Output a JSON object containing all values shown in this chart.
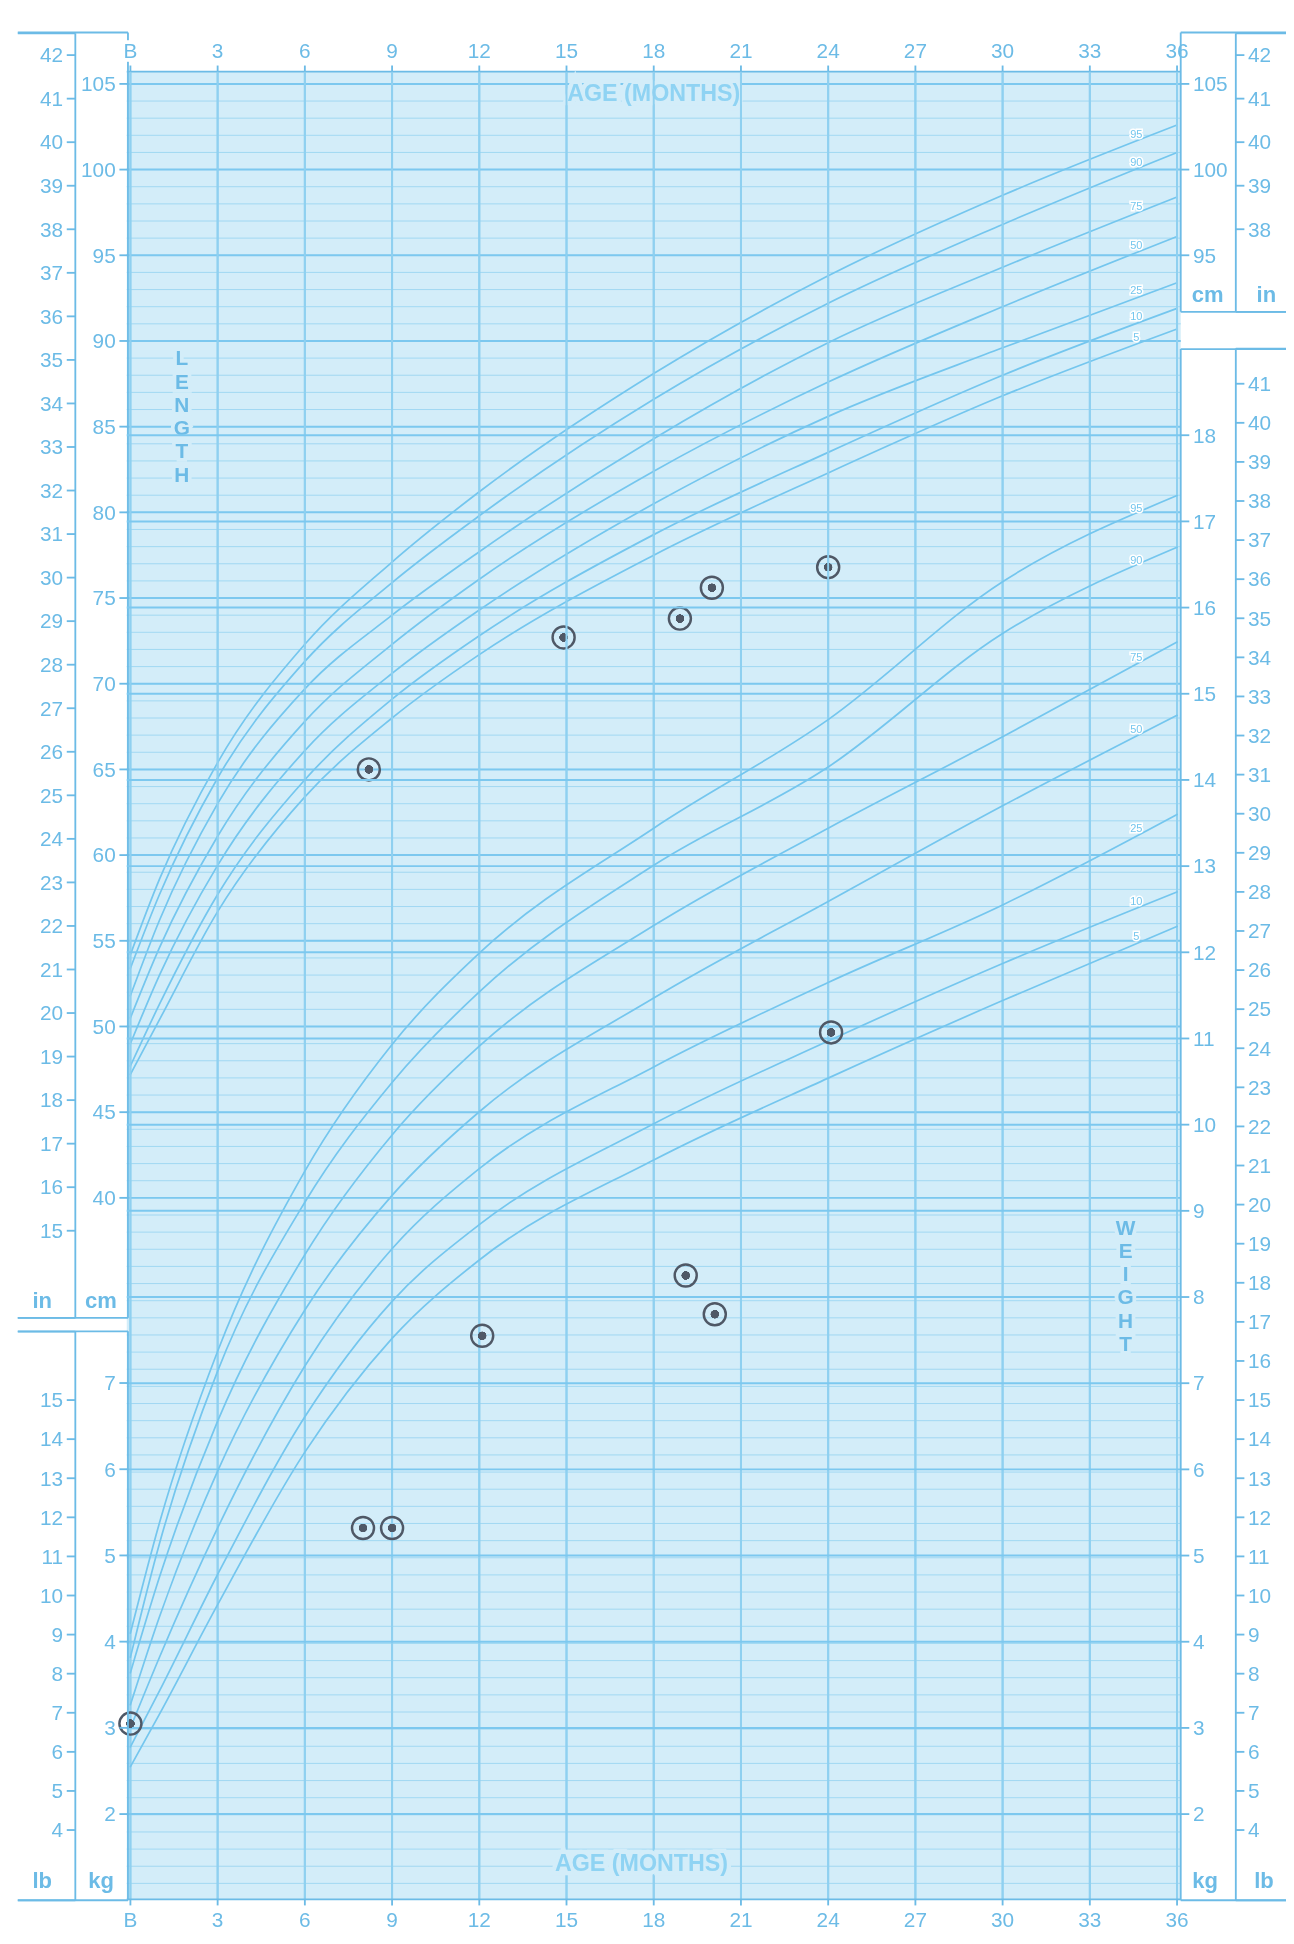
{
  "chart_data": [
    {
      "type": "line",
      "x2label": "AGE (MONTHS)",
      "xlim": [
        0,
        36
      ],
      "x2lim": [
        0,
        36
      ],
      "x2ticks": [
        {
          "value": 0,
          "label": "B"
        },
        3,
        6,
        9,
        12,
        15,
        18,
        21,
        24,
        27,
        30,
        33,
        36
      ],
      "ylabel": "cm",
      "ylim": [
        33,
        108
      ],
      "yticks": [
        40,
        45,
        50,
        55,
        60,
        65,
        70,
        75,
        80,
        85,
        90,
        95,
        100,
        105
      ],
      "y2label": "in",
      "y2lim": [
        13,
        42.5
      ],
      "y2ticks": [
        15,
        16,
        17,
        18,
        19,
        20,
        21,
        22,
        23,
        24,
        25,
        26,
        27,
        28,
        29,
        30,
        31,
        32,
        33,
        34,
        35,
        36,
        37,
        38,
        39,
        40,
        41,
        42
      ],
      "annotations": [
        "LENGTH"
      ],
      "grid": true,
      "marker": "none",
      "line_style": "solid",
      "x": [
        0,
        1,
        3,
        6,
        9,
        12,
        18,
        24,
        30,
        36
      ],
      "series": [
        {
          "name": "95",
          "color": "#74c6ee",
          "values": [
            54.2,
            58.6,
            65.4,
            72.3,
            77.1,
            81.2,
            88.1,
            93.8,
            98.5,
            102.6
          ]
        },
        {
          "name": "90",
          "color": "#74c6ee",
          "values": [
            53.4,
            57.7,
            64.5,
            71.3,
            75.9,
            79.8,
            86.6,
            92.2,
            96.8,
            101.0
          ]
        },
        {
          "name": "75",
          "color": "#74c6ee",
          "values": [
            51.8,
            56.2,
            63.0,
            69.7,
            74.0,
            77.7,
            84.3,
            89.9,
            94.3,
            98.4
          ]
        },
        {
          "name": "50",
          "color": "#74c6ee",
          "values": [
            50.5,
            54.6,
            61.1,
            67.8,
            72.3,
            76.1,
            82.4,
            87.6,
            92.0,
            96.1
          ]
        },
        {
          "name": "25",
          "color": "#74c6ee",
          "values": [
            49.0,
            53.0,
            59.4,
            66.1,
            70.6,
            74.3,
            80.5,
            85.6,
            89.6,
            93.4
          ]
        },
        {
          "name": "10",
          "color": "#74c6ee",
          "values": [
            47.7,
            51.3,
            57.7,
            64.4,
            69.1,
            72.8,
            78.7,
            83.5,
            88.0,
            91.9
          ]
        },
        {
          "name": "5",
          "color": "#74c6ee",
          "values": [
            47.2,
            50.4,
            56.7,
            63.4,
            68.0,
            71.7,
            77.5,
            82.3,
            86.8,
            90.7
          ]
        },
        {
          "type": "scatter",
          "marker": "circle",
          "color": "#4f5866",
          "x": [
            8.2,
            14.9,
            18.9,
            20.0,
            24.0
          ],
          "values": [
            65.0,
            72.7,
            73.8,
            75.6,
            76.8
          ]
        }
      ]
    },
    {
      "type": "line",
      "xlim": [
        0,
        36
      ],
      "tick_labels": "y",
      "ylabel": "cm",
      "ylim": [
        91.7,
        108
      ],
      "yticks": [
        95,
        100,
        105
      ],
      "y2label": "in",
      "y2lim": [
        36.1,
        42.5
      ],
      "y2ticks": [
        38,
        39,
        40,
        41,
        42
      ]
    },
    {
      "type": "line",
      "xlabel": "AGE (MONTHS)",
      "xlim": [
        0,
        36
      ],
      "xticks": [
        {
          "value": 0,
          "label": "B"
        },
        3,
        6,
        9,
        12,
        15,
        18,
        21,
        24,
        27,
        30,
        33,
        36
      ],
      "ylabel": "kg",
      "ylim": [
        1,
        19
      ],
      "yticks": [
        2,
        3,
        4,
        5,
        6,
        7,
        8,
        9,
        10,
        11,
        12,
        13,
        14,
        15,
        16,
        17,
        18
      ],
      "y2label": "lb",
      "y2lim": [
        2.2,
        41.9
      ],
      "y2ticks": [
        4,
        5,
        6,
        7,
        8,
        9,
        10,
        11,
        12,
        13,
        14,
        15,
        16,
        17,
        18,
        19,
        20,
        21,
        22,
        23,
        24,
        25,
        26,
        27,
        28,
        29,
        30,
        31,
        32,
        33,
        34,
        35,
        36,
        37,
        38,
        39,
        40,
        41
      ],
      "annotations": [
        "WEIGHT"
      ],
      "grid": true,
      "marker": "none",
      "line_style": "solid",
      "x": [
        0,
        1,
        3,
        6,
        9,
        12,
        18,
        24,
        30,
        36
      ],
      "series": [
        {
          "name": "95",
          "color": "#74c6ee",
          "values": [
            4.1,
            5.38,
            7.37,
            9.46,
            10.93,
            11.99,
            13.44,
            14.7,
            16.3,
            17.3
          ]
        },
        {
          "name": "90",
          "color": "#74c6ee",
          "values": [
            3.82,
            5.14,
            7.14,
            9.1,
            10.49,
            11.54,
            13.01,
            14.15,
            15.7,
            16.7
          ]
        },
        {
          "name": "75",
          "color": "#74c6ee",
          "values": [
            3.64,
            4.75,
            6.56,
            8.49,
            9.88,
            10.91,
            12.31,
            13.44,
            14.5,
            15.6
          ]
        },
        {
          "name": "50",
          "color": "#74c6ee",
          "values": [
            3.27,
            4.29,
            5.98,
            7.85,
            9.18,
            10.15,
            11.47,
            12.59,
            13.7,
            14.75
          ]
        },
        {
          "name": "25",
          "color": "#74c6ee",
          "values": [
            3.0,
            3.82,
            5.32,
            7.2,
            8.56,
            9.49,
            10.67,
            11.65,
            12.55,
            13.6
          ]
        },
        {
          "name": "10",
          "color": "#74c6ee",
          "values": [
            2.78,
            3.43,
            4.78,
            6.61,
            7.95,
            8.84,
            10.01,
            10.97,
            11.87,
            12.7
          ]
        },
        {
          "name": "5",
          "color": "#74c6ee",
          "values": [
            2.55,
            3.16,
            4.43,
            6.2,
            7.52,
            8.43,
            9.59,
            10.54,
            11.44,
            12.3
          ]
        },
        {
          "type": "scatter",
          "marker": "circle",
          "color": "#4f5866",
          "x": [
            0,
            8.0,
            9.0,
            12.1,
            19.1,
            20.1,
            24.1
          ],
          "values": [
            3.05,
            5.32,
            5.32,
            7.55,
            8.25,
            7.8,
            11.07
          ]
        }
      ]
    },
    {
      "type": "line",
      "xlim": [
        0,
        36
      ],
      "tick_labels": "y",
      "ylabel": "kg",
      "ylim": [
        1,
        7.6
      ],
      "yticks": [
        2,
        3,
        4,
        5,
        6,
        7
      ],
      "y2label": "lb",
      "y2lim": [
        2.2,
        16.75
      ],
      "y2ticks": [
        4,
        5,
        6,
        7,
        8,
        9,
        10,
        11,
        12,
        13,
        14,
        15
      ]
    }
  ]
}
